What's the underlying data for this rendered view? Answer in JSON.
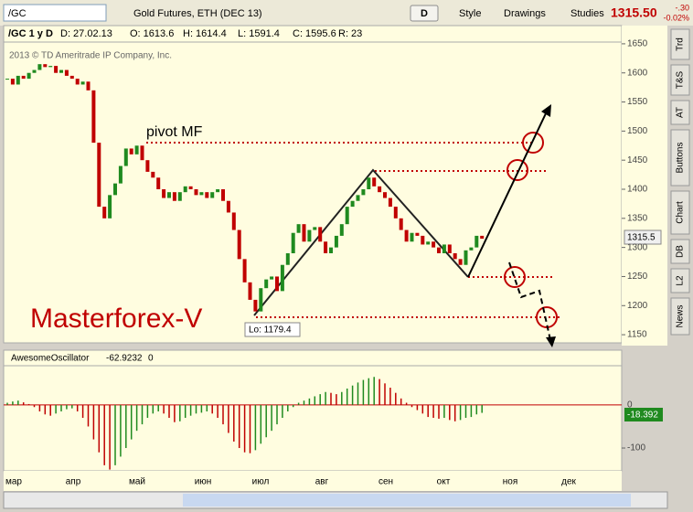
{
  "toolbar": {
    "symbol": "/GC",
    "description": "Gold Futures, ETH (DEC 13)",
    "period_button": "D",
    "style": "Style",
    "drawings": "Drawings",
    "studies": "Studies",
    "last_price": "1315.50",
    "change": "-.30",
    "change_pct": "-0.02%"
  },
  "info_bar": {
    "symbol": "/GC 1 y D",
    "date": "D: 27.02.13",
    "open": "O: 1613.6",
    "high": "H: 1614.4",
    "low": "L: 1591.4",
    "close": "C: 1595.6",
    "range": "R: 23"
  },
  "side_tabs": [
    "Trd",
    "T&S",
    "AT",
    "Buttons",
    "Chart",
    "DB",
    "L2",
    "News"
  ],
  "price_chart": {
    "copyright": "2013 © TD Ameritrade IP Company, Inc.",
    "watermark": "Masterforex-V",
    "pivot_label": "pivot MF",
    "low_label": "Lo: 1179.4",
    "last_badge": "1315.5",
    "ylim": [
      1136,
      1653
    ],
    "yticks": [
      1650,
      1600,
      1550,
      1500,
      1450,
      1400,
      1350,
      1300,
      1250,
      1200,
      1150
    ],
    "up_color": "#1f8a1f",
    "down_color": "#c00000",
    "closes": [
      1590,
      1580,
      1595,
      1590,
      1600,
      1605,
      1615,
      1610,
      1612,
      1600,
      1605,
      1595,
      1590,
      1580,
      1585,
      1570,
      1480,
      1370,
      1350,
      1390,
      1410,
      1440,
      1470,
      1460,
      1475,
      1450,
      1430,
      1420,
      1400,
      1385,
      1395,
      1380,
      1395,
      1405,
      1400,
      1390,
      1395,
      1385,
      1395,
      1400,
      1380,
      1360,
      1330,
      1280,
      1240,
      1210,
      1190,
      1230,
      1245,
      1250,
      1225,
      1270,
      1290,
      1325,
      1340,
      1310,
      1330,
      1335,
      1310,
      1290,
      1300,
      1320,
      1340,
      1370,
      1380,
      1390,
      1400,
      1420,
      1405,
      1395,
      1385,
      1370,
      1350,
      1330,
      1310,
      1325,
      1320,
      1305,
      1310,
      1300,
      1290,
      1305,
      1290,
      1280,
      1270,
      1295,
      1300,
      1320,
      1315
    ]
  },
  "oscillator": {
    "name": "AwesomeOscillator",
    "value": "-62.9232",
    "param": "0",
    "last_badge": "-18.392",
    "ylim": [
      -153,
      91
    ],
    "yticks": [
      0,
      -100
    ],
    "values": [
      5,
      8,
      10,
      6,
      2,
      -5,
      -15,
      -22,
      -25,
      -20,
      -15,
      -10,
      -8,
      -15,
      -30,
      -50,
      -80,
      -110,
      -140,
      -150,
      -140,
      -120,
      -100,
      -80,
      -60,
      -45,
      -30,
      -20,
      -15,
      -20,
      -30,
      -40,
      -38,
      -30,
      -25,
      -20,
      -18,
      -15,
      -20,
      -30,
      -45,
      -65,
      -85,
      -100,
      -110,
      -112,
      -105,
      -90,
      -75,
      -60,
      -45,
      -30,
      -15,
      -5,
      5,
      10,
      15,
      20,
      25,
      30,
      28,
      25,
      30,
      38,
      45,
      52,
      58,
      62,
      65,
      60,
      50,
      40,
      28,
      15,
      5,
      -5,
      -12,
      -20,
      -28,
      -30,
      -32,
      -30,
      -35,
      -38,
      -35,
      -30,
      -28,
      -22,
      -18.392
    ]
  },
  "time_axis": [
    "мар",
    "апр",
    "май",
    "июн",
    "июл",
    "авг",
    "сен",
    "окт",
    "ноя",
    "дек"
  ]
}
